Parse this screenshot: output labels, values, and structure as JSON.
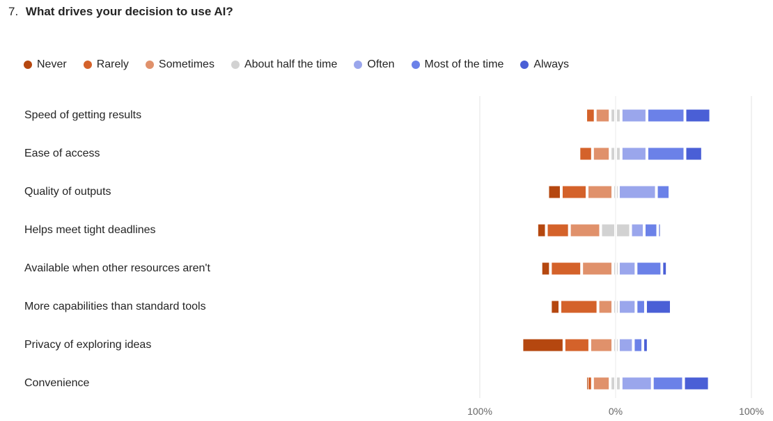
{
  "question": {
    "number": "7.",
    "title": "What drives your decision to use AI?"
  },
  "chart_data": {
    "type": "bar",
    "stacking": "diverging",
    "title": "What drives your decision to use AI?",
    "legend_position": "top-left",
    "series": [
      {
        "name": "Never",
        "color": "#b5470f",
        "side": "negative"
      },
      {
        "name": "Rarely",
        "color": "#d4622a",
        "side": "negative"
      },
      {
        "name": "Sometimes",
        "color": "#e0916b",
        "side": "negative"
      },
      {
        "name": "About half the time",
        "color": "#d2d2d2",
        "side": "center"
      },
      {
        "name": "Often",
        "color": "#9aa6ec",
        "side": "positive"
      },
      {
        "name": "Most of the time",
        "color": "#6b81e8",
        "side": "positive"
      },
      {
        "name": "Always",
        "color": "#4a5fd6",
        "side": "positive"
      }
    ],
    "categories": [
      "Speed of getting results",
      "Ease of access",
      "Quality of outputs",
      "Helps meet tight deadlines",
      "Available when other resources aren't",
      "More capabilities than standard tools",
      "Privacy of exploring ideas",
      "Convenience"
    ],
    "values_percent": [
      [
        0,
        7,
        11,
        6,
        19,
        28,
        19
      ],
      [
        0,
        10,
        13,
        6,
        19,
        28,
        13
      ],
      [
        10,
        19,
        19,
        2,
        28,
        10,
        0
      ],
      [
        7,
        17,
        23,
        20,
        10,
        10,
        2
      ],
      [
        7,
        23,
        23,
        2,
        13,
        19,
        4
      ],
      [
        7,
        28,
        11,
        2,
        13,
        7,
        19
      ],
      [
        31,
        19,
        17,
        2,
        11,
        7,
        4
      ],
      [
        1,
        4,
        13,
        6,
        23,
        23,
        19
      ]
    ],
    "x_axis": {
      "range": [
        -100,
        100
      ],
      "ticks": [
        -100,
        0,
        100
      ],
      "tick_labels": [
        "100%",
        "0%",
        "100%"
      ]
    }
  }
}
